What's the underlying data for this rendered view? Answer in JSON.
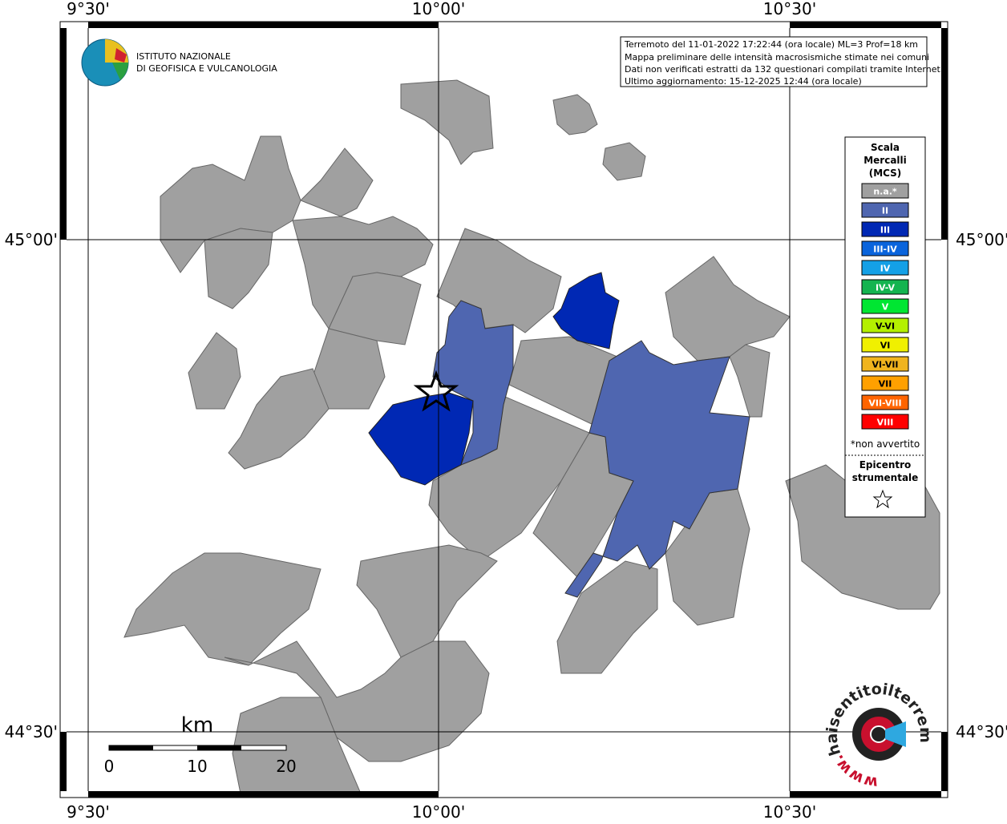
{
  "grid_labels": {
    "top": [
      "9°30'",
      "10°00'",
      "10°30'"
    ],
    "bottom": [
      "9°30'",
      "10°00'",
      "10°30'"
    ],
    "left": [
      "45°00'",
      "44°30'"
    ],
    "right": [
      "45°00'",
      "44°30'"
    ]
  },
  "info": [
    "Terremoto del 11-01-2022 17:22:44 (ora locale) ML=3 Prof=18 km",
    "Mappa preliminare delle intensità macrosismiche stimate nei comuni",
    "Dati non verificati estratti da 132 questionari compilati tramite Internet.",
    "Ultimo aggiornamento: 15-12-2025 12:44 (ora locale)"
  ],
  "logo": [
    "ISTITUTO NAZIONALE",
    "DI GEOFISICA E VULCANOLOGIA"
  ],
  "legend": {
    "title": [
      "Scala",
      "Mercalli",
      "(MCS)"
    ],
    "items": [
      {
        "label": "n.a.*",
        "color": "#a0a0a0"
      },
      {
        "label": "II",
        "color": "#4f66b0"
      },
      {
        "label": "III",
        "color": "#0028b4"
      },
      {
        "label": "III-IV",
        "color": "#0a64dc"
      },
      {
        "label": "IV",
        "color": "#14a0e6"
      },
      {
        "label": "IV-V",
        "color": "#14b450"
      },
      {
        "label": "V",
        "color": "#00e632"
      },
      {
        "label": "V-VI",
        "color": "#b4f000"
      },
      {
        "label": "VI",
        "color": "#f0f000"
      },
      {
        "label": "VI-VII",
        "color": "#f0b41e"
      },
      {
        "label": "VII",
        "color": "#ffa000"
      },
      {
        "label": "VII-VIII",
        "color": "#ff6400"
      },
      {
        "label": "VIII",
        "color": "#ff0000"
      }
    ],
    "note": "*non avvertito",
    "epicenter": [
      "Epicentro",
      "strumentale"
    ]
  },
  "scale_bar": {
    "unit": "km",
    "ticks": [
      "0",
      "10",
      "20"
    ]
  },
  "site_logo": {
    "prefix": "www.",
    "name": "haisentitoilterremoto.it"
  }
}
